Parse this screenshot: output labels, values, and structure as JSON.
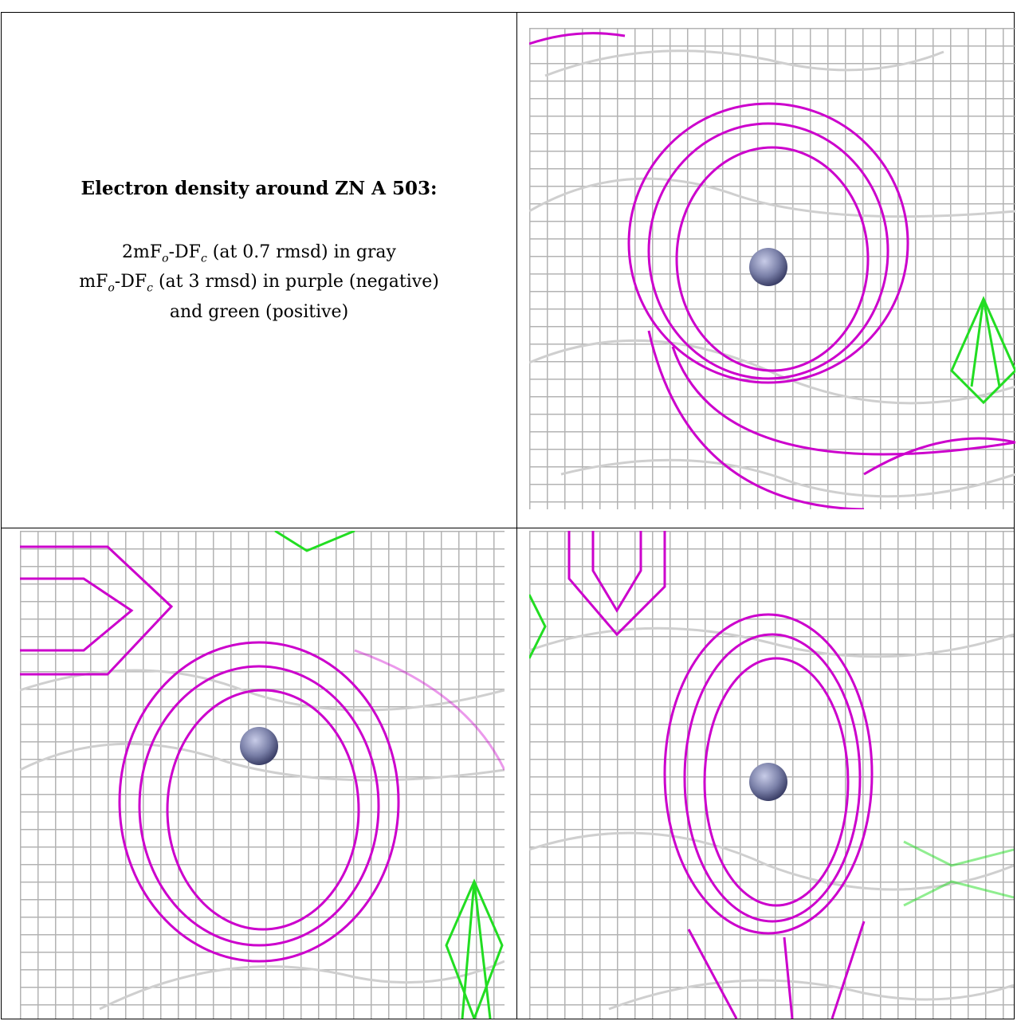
{
  "caption": {
    "title": "Electron density around ZN A 503:",
    "line1": {
      "pre": "2mF",
      "sub1": "o",
      "mid": "-DF",
      "sub2": "c",
      "post": " (at 0.7 rmsd) in gray"
    },
    "line2": {
      "pre": "mF",
      "sub1": "o",
      "mid": "-DF",
      "sub2": "c",
      "post": " (at 3 rmsd) in purple (negative)"
    },
    "line3": "and green (positive)"
  },
  "colors": {
    "gray_map": "#a8a8a8",
    "dark_gray_map": "#555555",
    "purple_map": "#cc00cc",
    "green_map": "#22dd22",
    "zinc_atom": "#7a80a8"
  }
}
